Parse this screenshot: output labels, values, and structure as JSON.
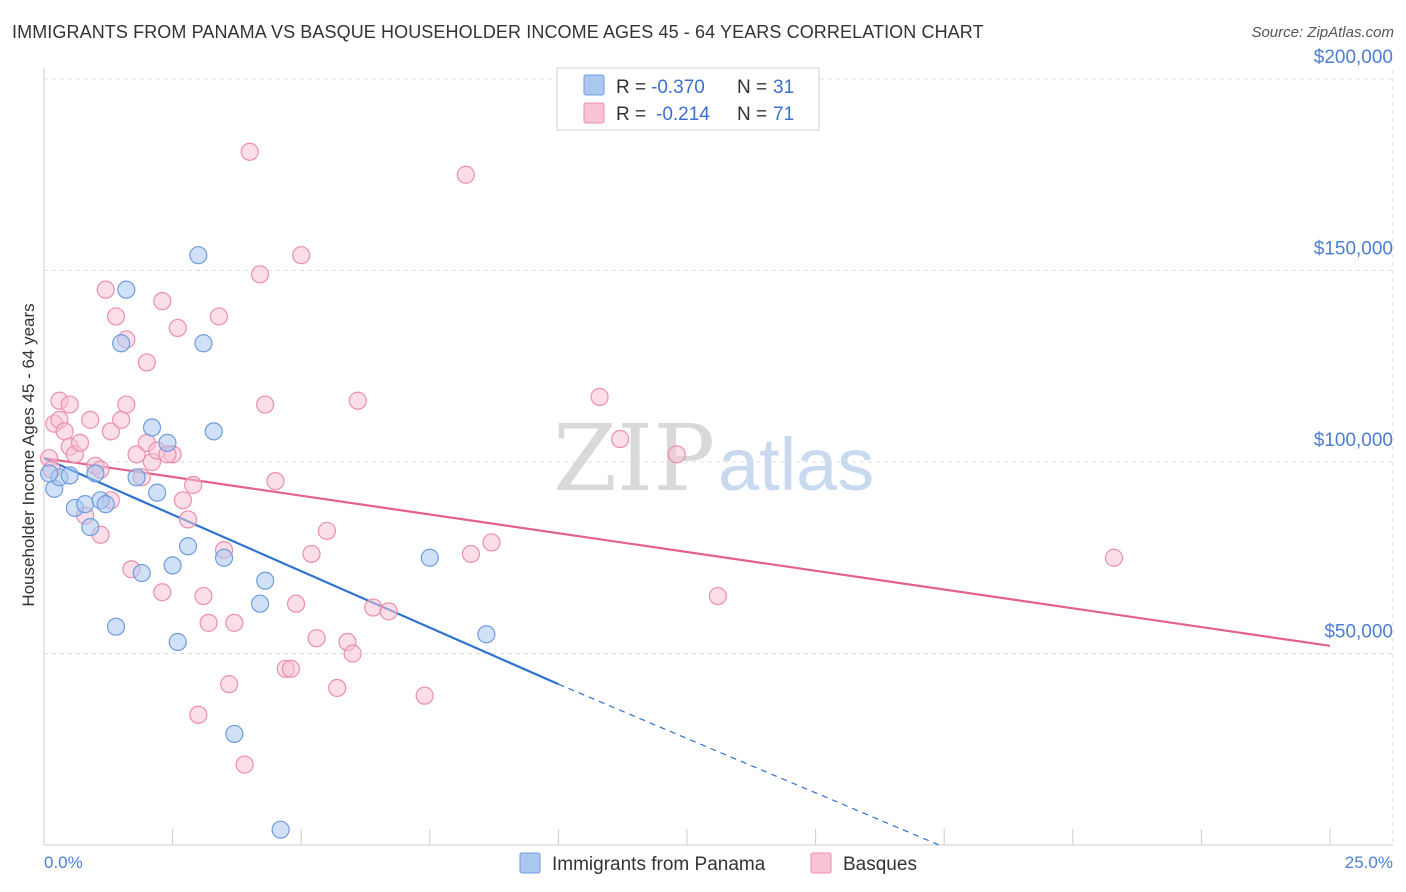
{
  "title": "IMMIGRANTS FROM PANAMA VS BASQUE HOUSEHOLDER INCOME AGES 45 - 64 YEARS CORRELATION CHART",
  "source": "Source: ZipAtlas.com",
  "watermark": {
    "part1": "ZIP",
    "part2": "atlas"
  },
  "colors": {
    "panama_fill": "#aac8f0",
    "panama_stroke": "#6e9ce0",
    "panama_line": "#2e73d2",
    "basque_fill": "#f8c3d3",
    "basque_stroke": "#ec8fab",
    "basque_line": "#e4608e",
    "tick_text": "#4a7fd1",
    "grid": "#dcdcdc"
  },
  "legend": {
    "rows": [
      {
        "r_label": "R =",
        "r_value": "-0.370",
        "n_label": "N =",
        "n_value": "31"
      },
      {
        "r_label": "R =",
        "r_value": "-0.214",
        "n_label": "N =",
        "n_value": "71"
      }
    ]
  },
  "chart_data": {
    "type": "scatter",
    "title": "IMMIGRANTS FROM PANAMA VS BASQUE HOUSEHOLDER INCOME AGES 45 - 64 YEARS CORRELATION CHART",
    "xlabel": "",
    "ylabel": "Householder Income Ages 45 - 64 years",
    "xlim": [
      0,
      25
    ],
    "ylim": [
      0,
      210000
    ],
    "x_tick_labels": [
      "0.0%",
      "25.0%"
    ],
    "y_ticks": [
      {
        "value": 50000,
        "label": "$50,000"
      },
      {
        "value": 100000,
        "label": "$100,000"
      },
      {
        "value": 150000,
        "label": "$150,000"
      },
      {
        "value": 200000,
        "label": "$200,000"
      }
    ],
    "grid": true,
    "legend_position": "top-center",
    "series": [
      {
        "name": "Immigrants from Panama",
        "points": [
          [
            0.2,
            93000
          ],
          [
            0.3,
            96000
          ],
          [
            0.5,
            96500
          ],
          [
            0.6,
            88000
          ],
          [
            0.8,
            89000
          ],
          [
            0.9,
            83000
          ],
          [
            1.0,
            97000
          ],
          [
            1.1,
            90000
          ],
          [
            1.2,
            89000
          ],
          [
            1.4,
            57000
          ],
          [
            1.6,
            145000
          ],
          [
            1.5,
            131000
          ],
          [
            1.8,
            96000
          ],
          [
            1.9,
            71000
          ],
          [
            2.1,
            109000
          ],
          [
            2.2,
            92000
          ],
          [
            2.4,
            105000
          ],
          [
            2.5,
            73000
          ],
          [
            2.6,
            53000
          ],
          [
            2.8,
            78000
          ],
          [
            3.0,
            154000
          ],
          [
            3.1,
            131000
          ],
          [
            3.3,
            108000
          ],
          [
            3.5,
            75000
          ],
          [
            3.7,
            29000
          ],
          [
            4.2,
            63000
          ],
          [
            4.3,
            69000
          ],
          [
            4.6,
            4000
          ],
          [
            7.5,
            75000
          ],
          [
            8.6,
            55000
          ],
          [
            0.1,
            97000
          ]
        ],
        "trend": {
          "x": [
            0,
            10.0
          ],
          "y": [
            101000,
            42000
          ]
        },
        "trend_dashed": {
          "x": [
            10.0,
            17.4
          ],
          "y": [
            42000,
            0
          ]
        }
      },
      {
        "name": "Basques",
        "points": [
          [
            0.1,
            101000
          ],
          [
            0.2,
            110000
          ],
          [
            0.3,
            116000
          ],
          [
            0.3,
            111000
          ],
          [
            0.4,
            108000
          ],
          [
            0.5,
            104000
          ],
          [
            0.5,
            115000
          ],
          [
            0.6,
            102000
          ],
          [
            0.7,
            105000
          ],
          [
            0.8,
            86000
          ],
          [
            0.9,
            111000
          ],
          [
            1.0,
            99000
          ],
          [
            1.1,
            98000
          ],
          [
            1.1,
            81000
          ],
          [
            1.2,
            145000
          ],
          [
            1.3,
            90000
          ],
          [
            1.3,
            108000
          ],
          [
            1.4,
            138000
          ],
          [
            1.5,
            111000
          ],
          [
            1.6,
            115000
          ],
          [
            1.6,
            132000
          ],
          [
            1.7,
            72000
          ],
          [
            1.8,
            102000
          ],
          [
            1.9,
            96000
          ],
          [
            2.0,
            105000
          ],
          [
            2.0,
            126000
          ],
          [
            2.1,
            100000
          ],
          [
            2.2,
            103000
          ],
          [
            2.3,
            66000
          ],
          [
            2.3,
            142000
          ],
          [
            2.5,
            102000
          ],
          [
            2.6,
            135000
          ],
          [
            2.7,
            90000
          ],
          [
            2.8,
            85000
          ],
          [
            2.9,
            94000
          ],
          [
            3.0,
            34000
          ],
          [
            3.1,
            65000
          ],
          [
            3.2,
            58000
          ],
          [
            3.4,
            138000
          ],
          [
            3.5,
            77000
          ],
          [
            3.6,
            42000
          ],
          [
            3.7,
            58000
          ],
          [
            3.9,
            21000
          ],
          [
            4.0,
            181000
          ],
          [
            4.2,
            149000
          ],
          [
            4.3,
            115000
          ],
          [
            4.5,
            95000
          ],
          [
            4.7,
            46000
          ],
          [
            4.8,
            46000
          ],
          [
            4.9,
            63000
          ],
          [
            5.0,
            154000
          ],
          [
            5.2,
            76000
          ],
          [
            5.3,
            54000
          ],
          [
            5.5,
            82000
          ],
          [
            5.7,
            41000
          ],
          [
            5.9,
            53000
          ],
          [
            6.0,
            50000
          ],
          [
            6.1,
            116000
          ],
          [
            6.4,
            62000
          ],
          [
            6.7,
            61000
          ],
          [
            7.4,
            39000
          ],
          [
            8.2,
            175000
          ],
          [
            8.3,
            76000
          ],
          [
            8.7,
            79000
          ],
          [
            10.8,
            117000
          ],
          [
            11.2,
            106000
          ],
          [
            12.3,
            102000
          ],
          [
            13.1,
            65000
          ],
          [
            20.8,
            75000
          ],
          [
            0.15,
            98000
          ],
          [
            2.4,
            102000
          ]
        ],
        "trend": {
          "x": [
            0,
            25
          ],
          "y": [
            101000,
            52000
          ]
        }
      }
    ]
  }
}
